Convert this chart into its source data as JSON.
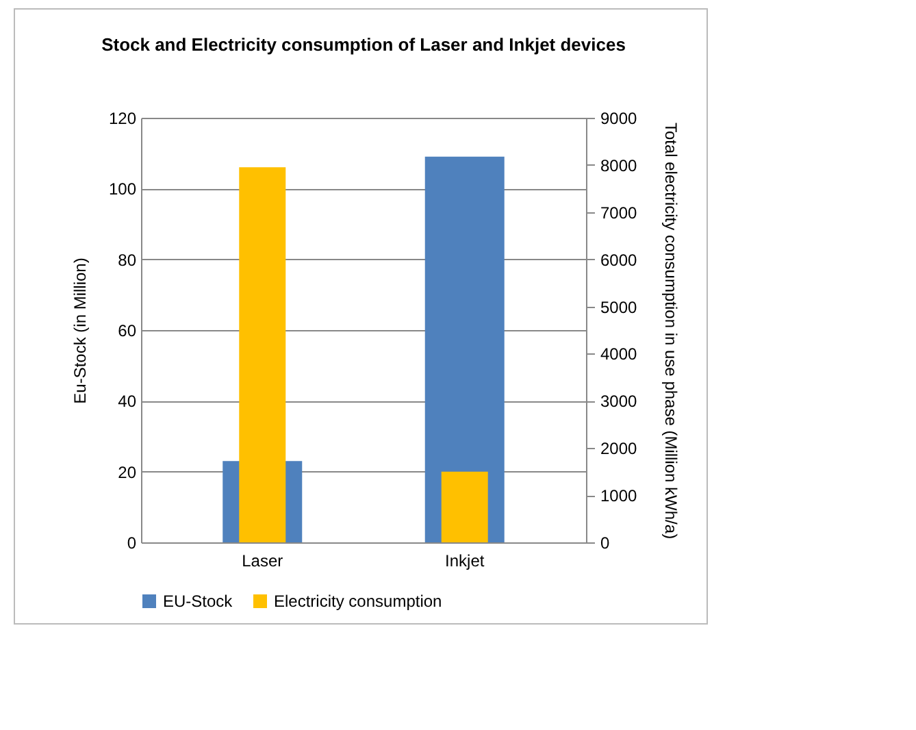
{
  "chart_data": {
    "type": "bar",
    "title": "Stock and Electricity  consumption of Laser and Inkjet devices",
    "ylabel": "Eu-Stock (in Million)",
    "y2label": "Total electricity consumption in use phase (Million kWh/a)",
    "categories": [
      "Laser",
      "Inkjet"
    ],
    "series": [
      {
        "name": "EU-Stock",
        "color": "#4f81bd",
        "values": [
          23,
          109
        ]
      },
      {
        "name": "Electricity consumption",
        "color": "#ffc000",
        "values": [
          7950,
          1500
        ],
        "axis": "y2"
      }
    ],
    "ylim": [
      0,
      120
    ],
    "yticks": [
      0,
      20,
      40,
      60,
      80,
      100,
      120
    ],
    "y2lim": [
      0,
      9000
    ],
    "y2ticks": [
      0,
      1000,
      2000,
      3000,
      4000,
      5000,
      6000,
      7000,
      8000,
      9000
    ],
    "grid": "y",
    "legend": "bottom"
  }
}
